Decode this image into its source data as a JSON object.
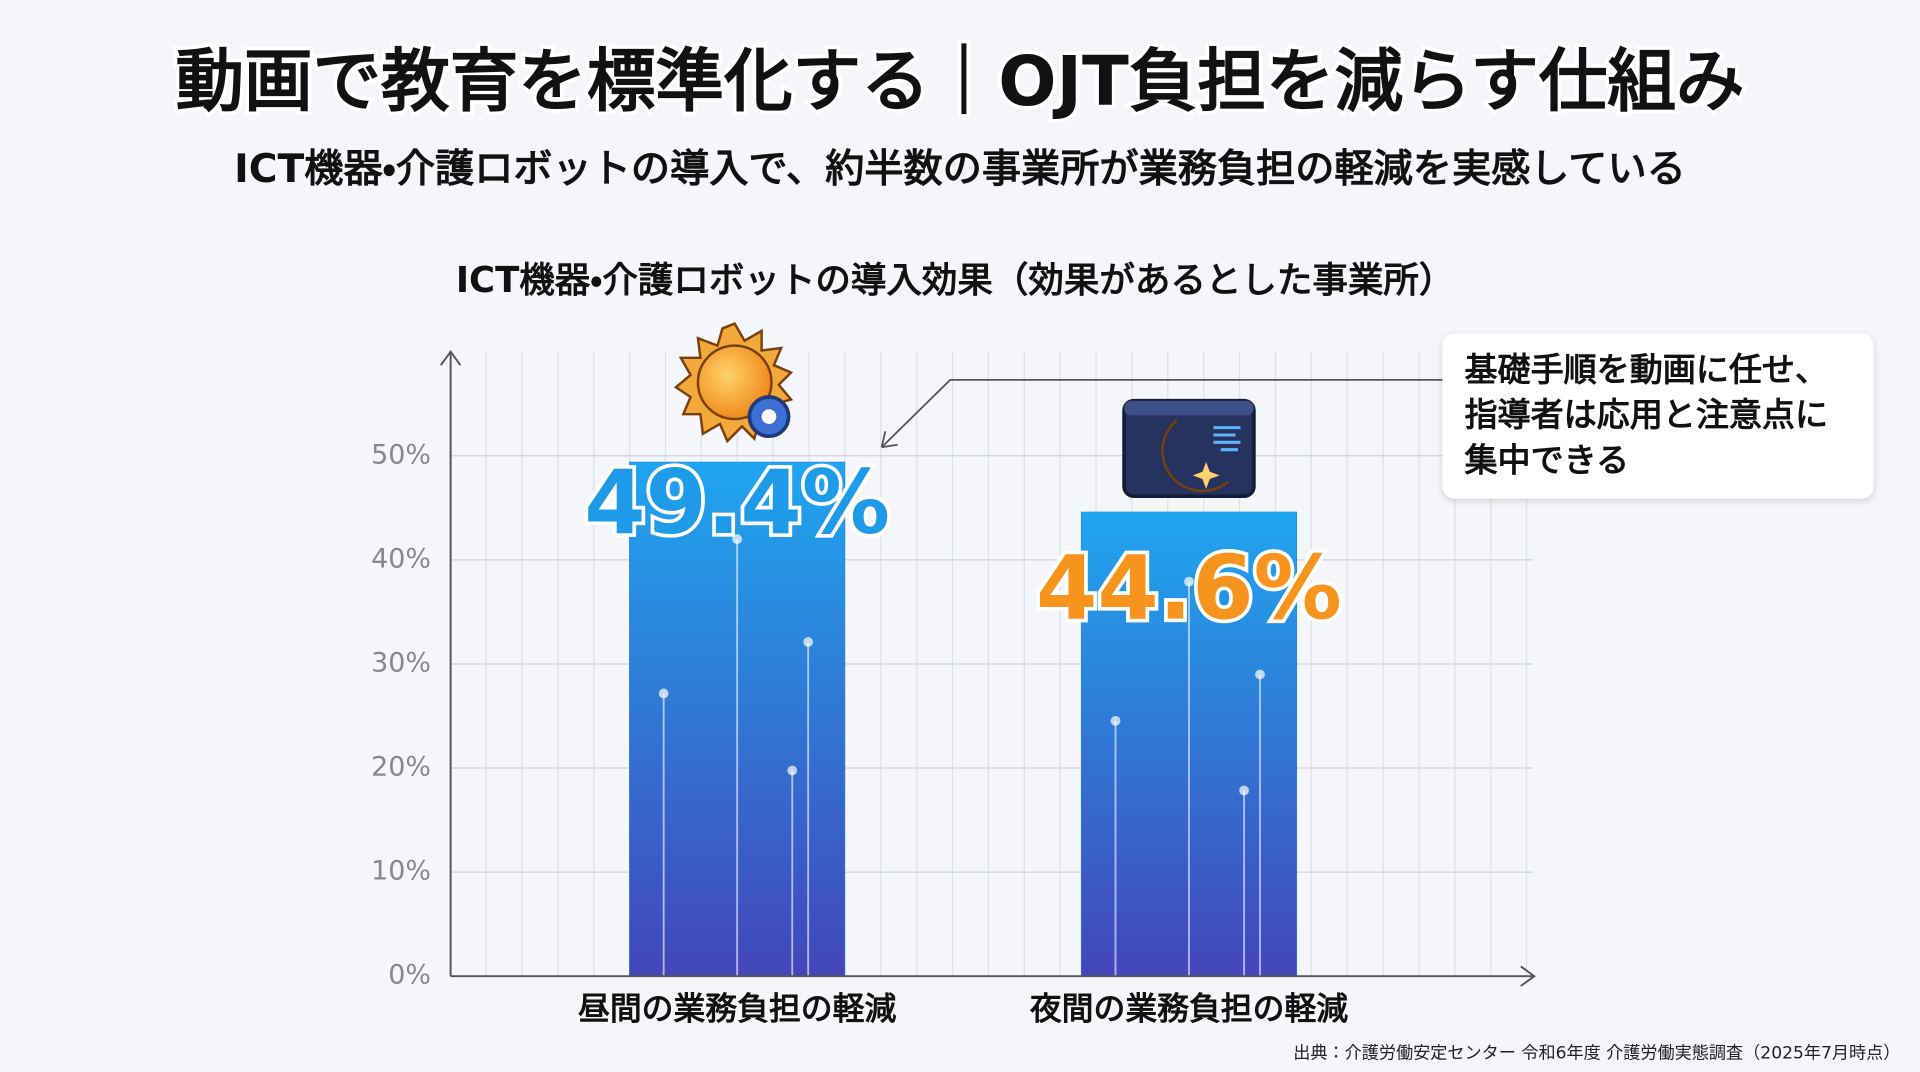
{
  "chart_data": {
    "type": "bar",
    "title": "動画で教育を標準化する｜OJT負担を減らす仕組み",
    "subtitle": "ICT機器・介護ロボットの導入で、約半数の事業所が業務負担の軽減を実感している",
    "chart_title": "ICT機器・介護ロボットの導入効果（効果があるとした事業所）",
    "categories": [
      "昼間の業務負担の軽減",
      "夜間の業務負担の軽減"
    ],
    "values": [
      49.4,
      44.6
    ],
    "value_labels": [
      "49.4%",
      "44.6%"
    ],
    "value_label_colors": [
      "#1e9be8",
      "#f7941d"
    ],
    "color": "#2f7fe0",
    "ylim": [
      0,
      60
    ],
    "yticks": [
      {
        "value": 0,
        "label": "0%"
      },
      {
        "value": 10,
        "label": "10%"
      },
      {
        "value": 20,
        "label": "20%"
      },
      {
        "value": 30,
        "label": "30%"
      },
      {
        "value": 40,
        "label": "40%"
      },
      {
        "value": 50,
        "label": "50%"
      }
    ],
    "grid": true,
    "annotation": [
      "基礎手順を動画に任せ、",
      "指導者は応用と注意点に",
      "集中できる"
    ],
    "source": "出典：介護労働安定センター 令和6年度 介護労働実態調査（2025年7月時点）"
  }
}
